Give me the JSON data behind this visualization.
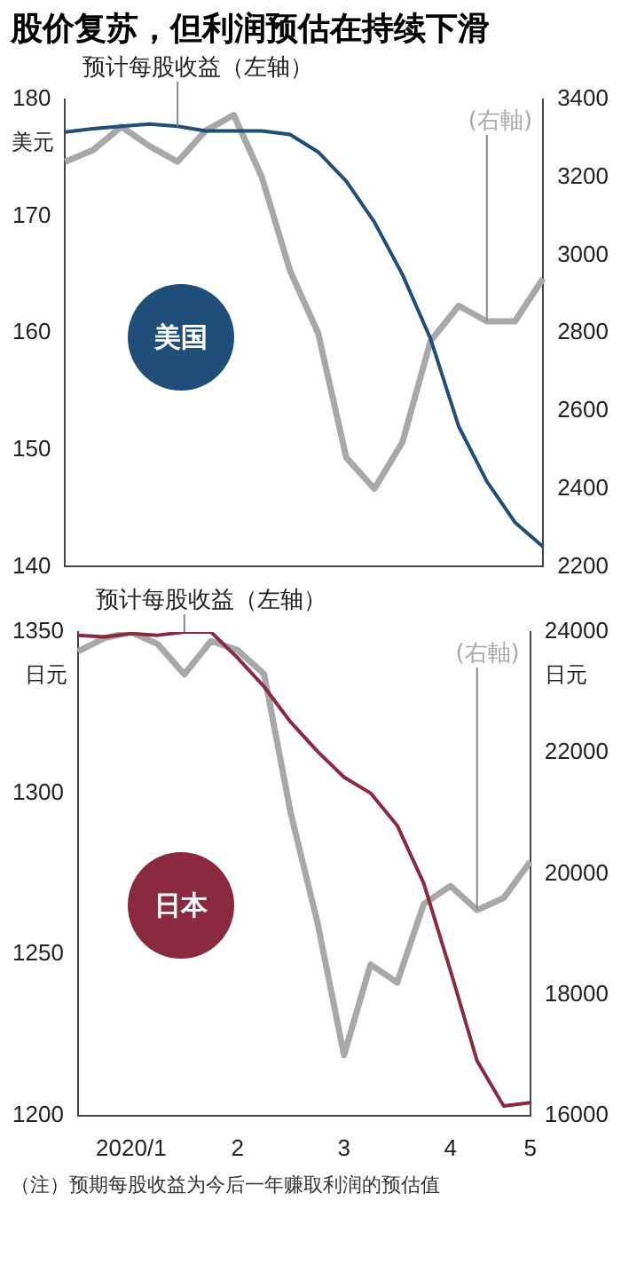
{
  "chart_data": [
    {
      "type": "line",
      "title": "股价复苏，但利润预估在持续下滑",
      "categories": [
        null,
        null,
        null,
        null,
        null,
        null,
        null,
        null,
        null,
        null,
        null,
        null,
        null,
        null,
        null,
        null,
        null,
        null
      ],
      "tick_labels": "y",
      "ylabel": "美元",
      "ylim": [
        140,
        180
      ],
      "yticks": [
        140,
        150,
        160,
        170,
        180
      ],
      "y2lim": [
        2200,
        3400
      ],
      "y2ticks": [
        2200,
        2400,
        2600,
        2800,
        3000,
        3200,
        3400
      ],
      "grid": false,
      "legend": false,
      "marker": "none",
      "annotations": [
        "美国"
      ],
      "series": [
        {
          "name": "预计每股收益（左轴）",
          "color": "#1f4e79",
          "values": [
            177.2,
            177.5,
            177.7,
            177.9,
            177.7,
            177.3,
            177.3,
            177.3,
            177.0,
            175.5,
            173,
            169.5,
            165,
            159.5,
            152,
            147.3,
            143.8,
            141.7
          ]
        },
        {
          "name": "(右軸)",
          "color": "#a8a8a8",
          "axis": "y2",
          "values": [
            3240,
            3270,
            3330,
            3280,
            3240,
            3320,
            3360,
            3200,
            2960,
            2800,
            2480,
            2400,
            2520,
            2780,
            2870,
            2830,
            2830,
            2940
          ]
        }
      ]
    },
    {
      "type": "line",
      "categories": [
        null,
        null,
        "2020/1",
        null,
        null,
        null,
        "2",
        null,
        null,
        null,
        "3",
        null,
        null,
        null,
        "4",
        null,
        null,
        "5"
      ],
      "ylabel": "日元",
      "y2label": "日元",
      "ylim": [
        1200,
        1350
      ],
      "yticks": [
        1200,
        1250,
        1300,
        1350
      ],
      "y2lim": [
        16000,
        24000
      ],
      "y2ticks": [
        16000,
        18000,
        20000,
        22000,
        24000
      ],
      "grid": false,
      "legend": false,
      "marker": "none",
      "annotations": [
        "日本",
        "（注）预期每股收益为今后一年赚取利润的预估值"
      ],
      "series": [
        {
          "name": "预计每股收益（左轴）",
          "color": "#8b2a3e",
          "values": [
            1349,
            1348.5,
            1349.5,
            1349,
            1350,
            1350,
            1342,
            1333,
            1322,
            1313,
            1305,
            1300,
            1290,
            1272,
            1245,
            1217,
            1203,
            1204
          ]
        },
        {
          "name": "(右軸)",
          "color": "#a8a8a8",
          "axis": "y2",
          "values": [
            23680,
            23900,
            24000,
            23800,
            23300,
            23850,
            23700,
            23300,
            21000,
            19200,
            17000,
            18500,
            18200,
            19500,
            19800,
            19400,
            19600,
            20200
          ]
        }
      ]
    }
  ]
}
